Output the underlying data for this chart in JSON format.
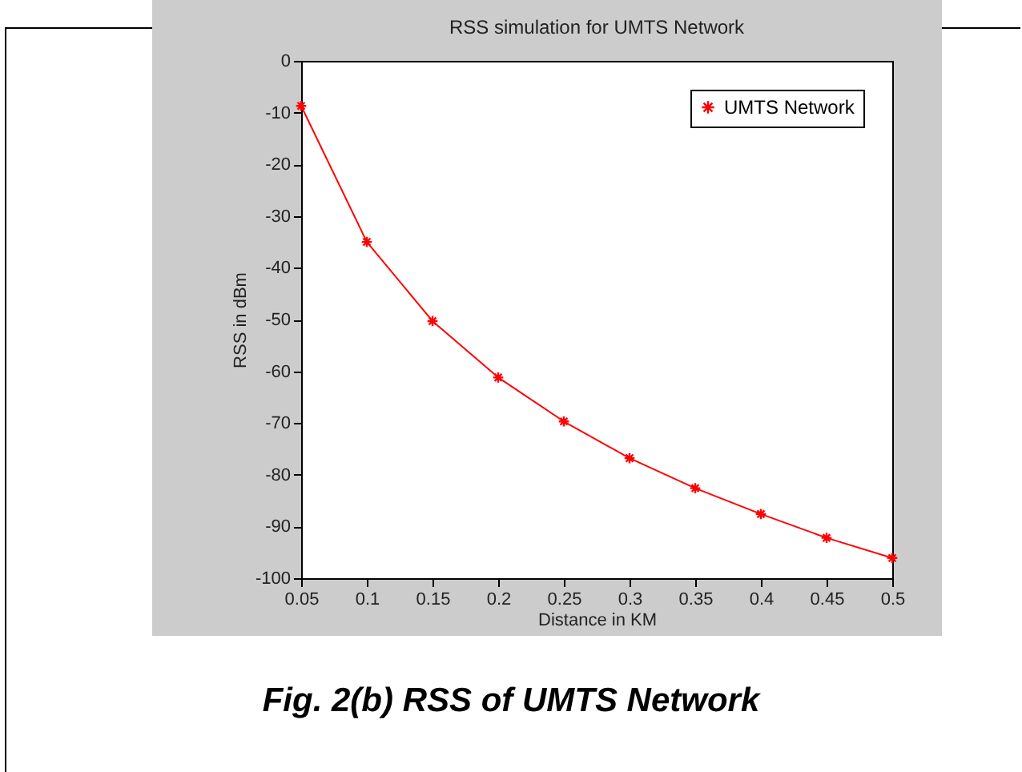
{
  "chart_data": {
    "type": "line",
    "title": "RSS simulation for UMTS Network",
    "xlabel": "Distance in KM",
    "ylabel": "RSS in dBm",
    "x": [
      0.05,
      0.1,
      0.15,
      0.2,
      0.25,
      0.3,
      0.35,
      0.4,
      0.45,
      0.5
    ],
    "series": [
      {
        "name": "UMTS Network",
        "color": "#ff0000",
        "values": [
          -8.7,
          -35,
          -50.3,
          -61.2,
          -69.7,
          -76.8,
          -82.6,
          -87.6,
          -92.2,
          -96.1
        ]
      }
    ],
    "xlim": [
      0.05,
      0.5
    ],
    "xticks": [
      0.05,
      0.1,
      0.15,
      0.2,
      0.25,
      0.3,
      0.35,
      0.4,
      0.45,
      0.5
    ],
    "ylim": [
      -100,
      0
    ],
    "yticks": [
      -100,
      -90,
      -80,
      -70,
      -60,
      -50,
      -40,
      -30,
      -20,
      -10,
      0
    ],
    "legend": "top right",
    "marker": "cross",
    "line_style": "solid",
    "grid": false,
    "annotations": [
      "Fig. 2(b) RSS of UMTS Network"
    ]
  }
}
